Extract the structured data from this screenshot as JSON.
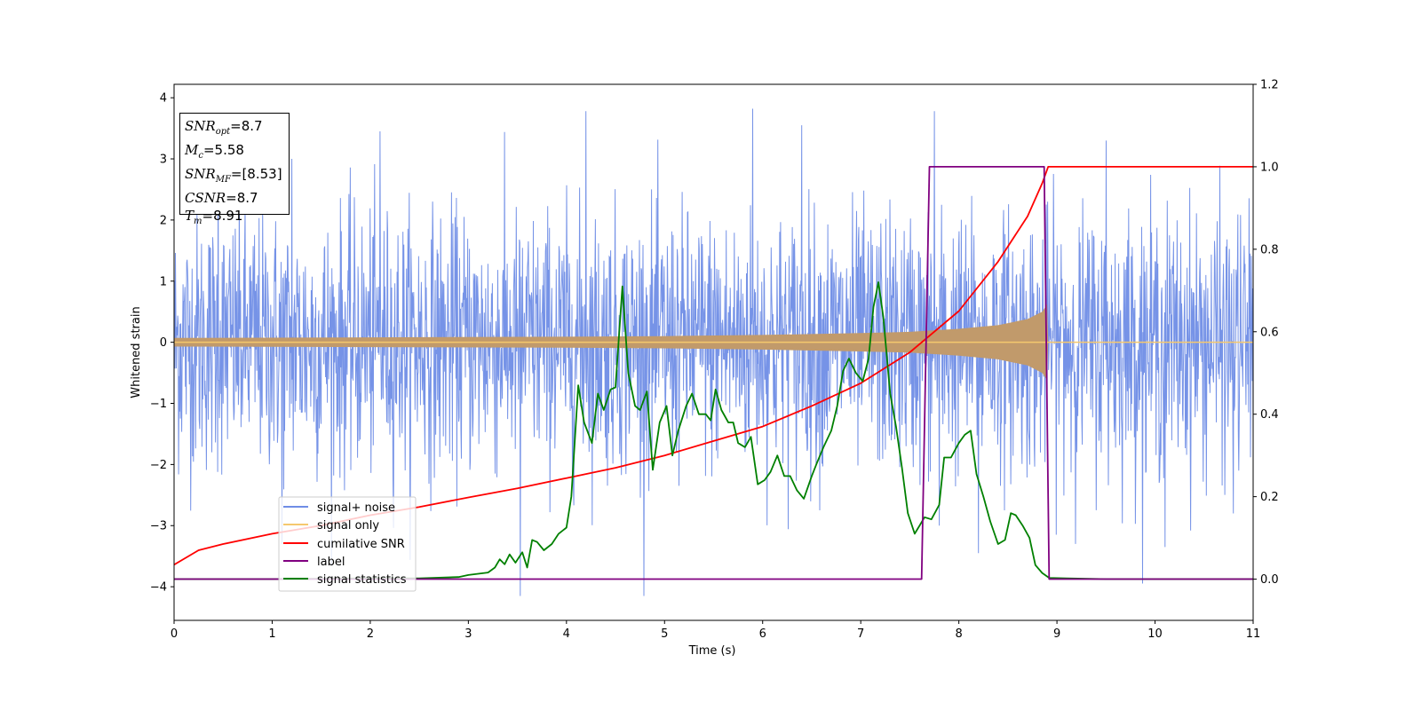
{
  "colors": {
    "noise": "#6f8de6",
    "signal": "#f5c86e",
    "cumulative": "#ff0000",
    "label": "#800080",
    "stat": "#008000",
    "signal_fill": "#c19a6b"
  },
  "info_box": {
    "snr_opt_var": "SNR",
    "snr_opt_sub": "opt",
    "snr_opt_val": "=8.7",
    "mc_var": "M",
    "mc_sub": "c",
    "mc_val": "=5.58",
    "snr_mf_var": "SNR",
    "snr_mf_sub": "MF",
    "snr_mf_val": "=[8.53]",
    "csnr_var": "CSNR",
    "csnr_val": "=8.7",
    "tm_var": "T",
    "tm_sub": "m",
    "tm_val": "=8.91"
  },
  "chart_data": {
    "type": "line",
    "xlabel": "Time (s)",
    "ylabel": "Whitened strain",
    "xlim": [
      0,
      11
    ],
    "ylim": [
      -4.55,
      4.22
    ],
    "y2lim": [
      -0.1,
      1.2
    ],
    "xticks": [
      "0",
      "1",
      "2",
      "3",
      "4",
      "5",
      "6",
      "7",
      "8",
      "9",
      "10",
      "11"
    ],
    "yticks": [
      "4",
      "3",
      "2",
      "1",
      "0",
      "−1",
      "−2",
      "−3",
      "−4"
    ],
    "y2ticks": [
      "1.2",
      "1.0",
      "0.8",
      "0.6",
      "0.4",
      "0.2",
      "0.0"
    ],
    "grid": false,
    "legend_position": "lower-left",
    "series": [
      {
        "name": "signal+ noise",
        "axis": "left",
        "description_range": [
          -4.15,
          3.82
        ],
        "peaks": [
          {
            "x": 0.45,
            "y": 3.2
          },
          {
            "x": 1.1,
            "y": -3.3
          },
          {
            "x": 1.2,
            "y": 3.0
          },
          {
            "x": 2.1,
            "y": 3.45
          },
          {
            "x": 3.53,
            "y": -4.15
          },
          {
            "x": 4.2,
            "y": 3.78
          },
          {
            "x": 5.9,
            "y": 3.82
          },
          {
            "x": 6.4,
            "y": 3.55
          },
          {
            "x": 7.75,
            "y": 3.78
          },
          {
            "x": 7.8,
            "y": -3.0
          },
          {
            "x": 8.2,
            "y": -3.45
          },
          {
            "x": 9.5,
            "y": 3.3
          },
          {
            "x": 10.1,
            "y": -3.35
          },
          {
            "x": 10.8,
            "y": -2.8
          }
        ]
      },
      {
        "name": "signal only",
        "axis": "left",
        "envelope": [
          [
            0.0,
            0.07
          ],
          [
            2.0,
            0.08
          ],
          [
            4.0,
            0.09
          ],
          [
            5.0,
            0.1
          ],
          [
            6.0,
            0.12
          ],
          [
            7.0,
            0.15
          ],
          [
            7.5,
            0.17
          ],
          [
            8.0,
            0.22
          ],
          [
            8.4,
            0.28
          ],
          [
            8.7,
            0.38
          ],
          [
            8.85,
            0.5
          ],
          [
            8.9,
            0.62
          ],
          [
            8.91,
            0.0
          ],
          [
            11.0,
            0.0
          ]
        ]
      },
      {
        "name": "cumilative SNR",
        "axis": "right",
        "points": [
          [
            0.0,
            0.035
          ],
          [
            0.25,
            0.07
          ],
          [
            0.5,
            0.085
          ],
          [
            1.0,
            0.11
          ],
          [
            1.5,
            0.13
          ],
          [
            2.0,
            0.155
          ],
          [
            2.5,
            0.175
          ],
          [
            3.0,
            0.198
          ],
          [
            3.5,
            0.22
          ],
          [
            4.0,
            0.245
          ],
          [
            4.5,
            0.27
          ],
          [
            5.0,
            0.3
          ],
          [
            5.5,
            0.335
          ],
          [
            6.0,
            0.37
          ],
          [
            6.5,
            0.42
          ],
          [
            7.0,
            0.475
          ],
          [
            7.5,
            0.55
          ],
          [
            8.0,
            0.65
          ],
          [
            8.4,
            0.77
          ],
          [
            8.7,
            0.88
          ],
          [
            8.85,
            0.96
          ],
          [
            8.91,
            1.0
          ],
          [
            11.0,
            1.0
          ]
        ]
      },
      {
        "name": "label",
        "axis": "right",
        "points": [
          [
            0.0,
            0.0
          ],
          [
            7.62,
            0.0
          ],
          [
            7.7,
            1.0
          ],
          [
            8.87,
            1.0
          ],
          [
            8.92,
            0.0
          ],
          [
            11.0,
            0.0
          ]
        ]
      },
      {
        "name": "signal statistics",
        "axis": "right",
        "points": [
          [
            0.0,
            0.0
          ],
          [
            1.0,
            0.0
          ],
          [
            2.0,
            0.002
          ],
          [
            2.5,
            0.002
          ],
          [
            2.9,
            0.005
          ],
          [
            3.0,
            0.01
          ],
          [
            3.1,
            0.013
          ],
          [
            3.2,
            0.016
          ],
          [
            3.27,
            0.028
          ],
          [
            3.32,
            0.048
          ],
          [
            3.37,
            0.036
          ],
          [
            3.42,
            0.06
          ],
          [
            3.48,
            0.04
          ],
          [
            3.55,
            0.065
          ],
          [
            3.6,
            0.028
          ],
          [
            3.65,
            0.095
          ],
          [
            3.7,
            0.09
          ],
          [
            3.77,
            0.07
          ],
          [
            3.85,
            0.085
          ],
          [
            3.92,
            0.11
          ],
          [
            4.0,
            0.125
          ],
          [
            4.05,
            0.2
          ],
          [
            4.12,
            0.47
          ],
          [
            4.18,
            0.38
          ],
          [
            4.26,
            0.33
          ],
          [
            4.32,
            0.45
          ],
          [
            4.38,
            0.41
          ],
          [
            4.45,
            0.46
          ],
          [
            4.5,
            0.465
          ],
          [
            4.57,
            0.71
          ],
          [
            4.63,
            0.5
          ],
          [
            4.7,
            0.42
          ],
          [
            4.75,
            0.41
          ],
          [
            4.82,
            0.455
          ],
          [
            4.88,
            0.265
          ],
          [
            4.95,
            0.38
          ],
          [
            5.02,
            0.42
          ],
          [
            5.08,
            0.3
          ],
          [
            5.14,
            0.36
          ],
          [
            5.22,
            0.42
          ],
          [
            5.28,
            0.45
          ],
          [
            5.35,
            0.4
          ],
          [
            5.42,
            0.4
          ],
          [
            5.47,
            0.385
          ],
          [
            5.52,
            0.46
          ],
          [
            5.58,
            0.41
          ],
          [
            5.65,
            0.38
          ],
          [
            5.7,
            0.38
          ],
          [
            5.75,
            0.33
          ],
          [
            5.82,
            0.32
          ],
          [
            5.88,
            0.345
          ],
          [
            5.95,
            0.23
          ],
          [
            6.02,
            0.24
          ],
          [
            6.08,
            0.26
          ],
          [
            6.15,
            0.3
          ],
          [
            6.22,
            0.25
          ],
          [
            6.28,
            0.25
          ],
          [
            6.35,
            0.215
          ],
          [
            6.42,
            0.195
          ],
          [
            6.5,
            0.25
          ],
          [
            6.55,
            0.28
          ],
          [
            6.62,
            0.32
          ],
          [
            6.7,
            0.36
          ],
          [
            6.76,
            0.42
          ],
          [
            6.82,
            0.505
          ],
          [
            6.88,
            0.535
          ],
          [
            6.95,
            0.5
          ],
          [
            7.02,
            0.48
          ],
          [
            7.08,
            0.535
          ],
          [
            7.13,
            0.66
          ],
          [
            7.18,
            0.72
          ],
          [
            7.23,
            0.635
          ],
          [
            7.3,
            0.45
          ],
          [
            7.36,
            0.37
          ],
          [
            7.42,
            0.27
          ],
          [
            7.48,
            0.16
          ],
          [
            7.55,
            0.11
          ],
          [
            7.6,
            0.13
          ],
          [
            7.65,
            0.15
          ],
          [
            7.72,
            0.145
          ],
          [
            7.8,
            0.18
          ],
          [
            7.85,
            0.295
          ],
          [
            7.92,
            0.295
          ],
          [
            8.0,
            0.33
          ],
          [
            8.06,
            0.35
          ],
          [
            8.12,
            0.36
          ],
          [
            8.18,
            0.255
          ],
          [
            8.25,
            0.2
          ],
          [
            8.32,
            0.14
          ],
          [
            8.4,
            0.085
          ],
          [
            8.47,
            0.095
          ],
          [
            8.53,
            0.16
          ],
          [
            8.58,
            0.155
          ],
          [
            8.65,
            0.13
          ],
          [
            8.72,
            0.1
          ],
          [
            8.78,
            0.034
          ],
          [
            8.85,
            0.015
          ],
          [
            8.92,
            0.003
          ],
          [
            9.1,
            0.002
          ],
          [
            9.5,
            0.0
          ],
          [
            10.0,
            0.0
          ],
          [
            11.0,
            0.0
          ]
        ]
      }
    ]
  }
}
